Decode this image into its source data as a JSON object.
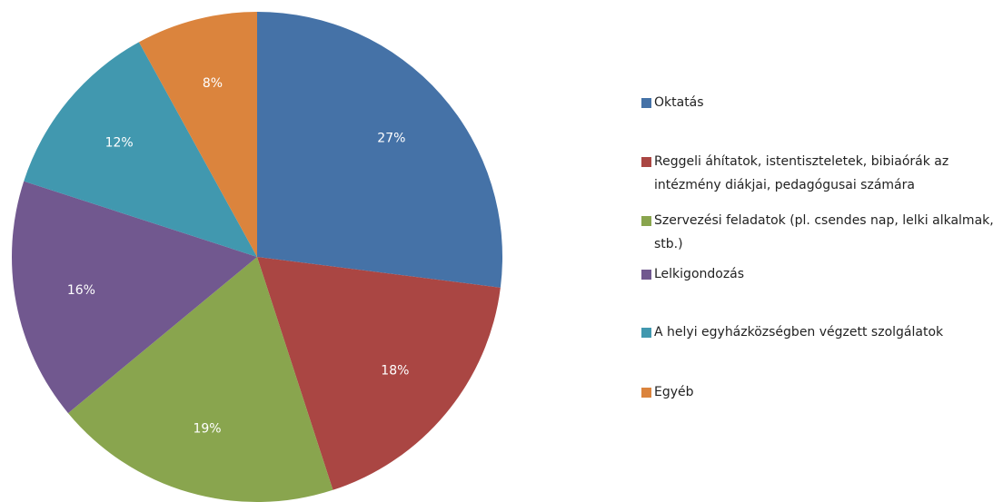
{
  "chart_data": {
    "type": "pie",
    "categories": [
      "Oktatás",
      "Reggeli áhítatok, istentiszteletek, bibiaórák az intézmény diákjai, pedagógusai számára",
      "Szervezési feladatok (pl. csendes nap, lelki alkalmak, stb.)",
      "Lelkigondozás",
      "A helyi egyházközségben végzett szolgálatok",
      "Egyéb"
    ],
    "values": [
      27,
      18,
      19,
      16,
      12,
      8
    ],
    "value_labels": [
      "27%",
      "18%",
      "19%",
      "16%",
      "12%",
      "8%"
    ],
    "colors": [
      "#4572a7",
      "#aa4643",
      "#89a54e",
      "#71588f",
      "#4198af",
      "#db843d"
    ],
    "legend": "right"
  }
}
